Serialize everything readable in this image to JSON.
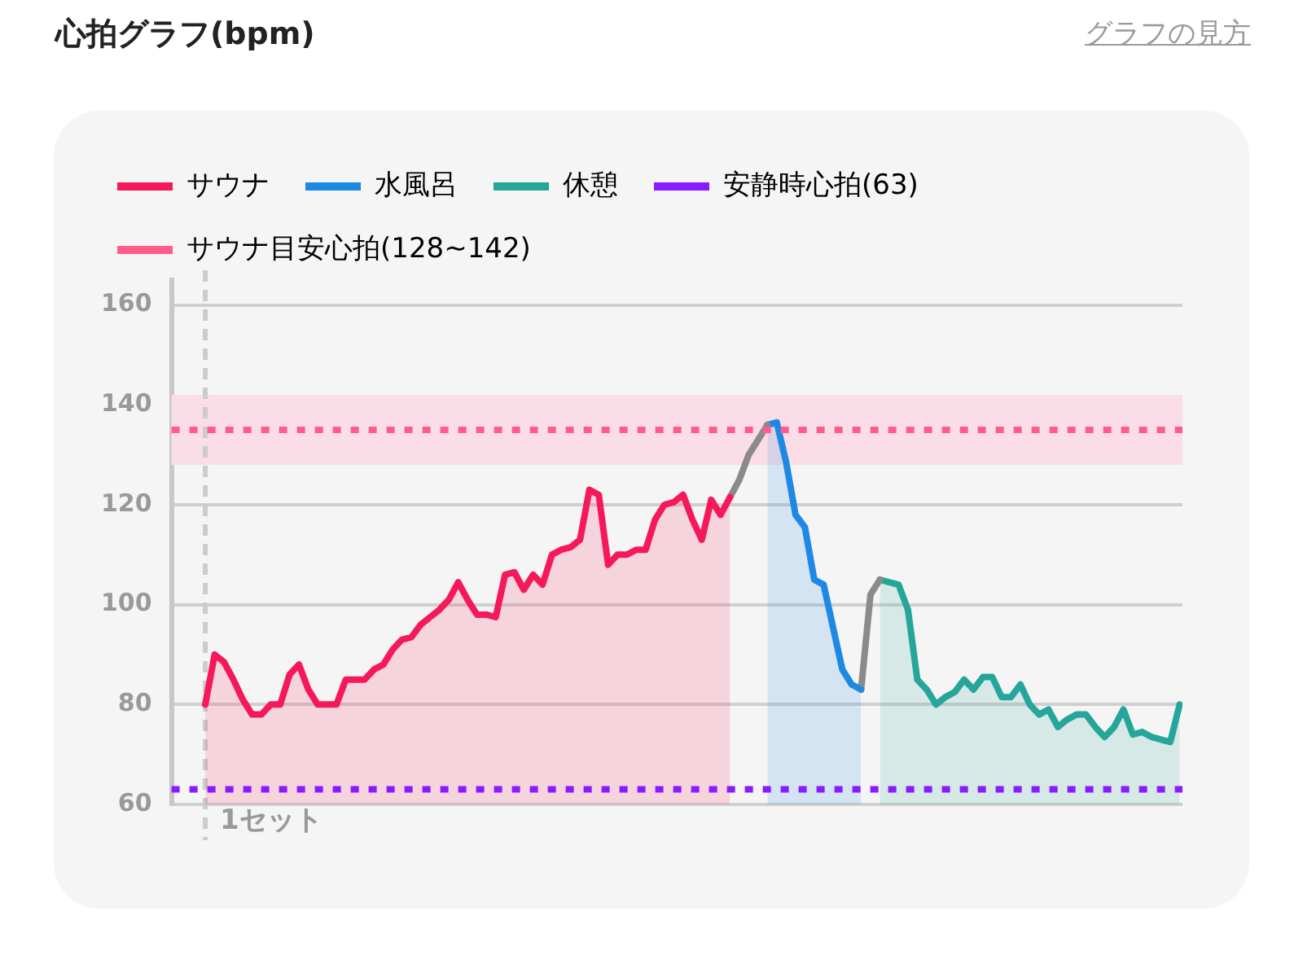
{
  "chart_data": {
    "type": "line",
    "title": "心拍グラフ(bpm)",
    "annotations": [
      "グラフの見方",
      "1セット"
    ],
    "categories": [
      null,
      null,
      null,
      null,
      null,
      null,
      null,
      null,
      null,
      null,
      null,
      null,
      null,
      null,
      null,
      null,
      null,
      null,
      null,
      null,
      null,
      null,
      null,
      null,
      null,
      null,
      null,
      null,
      null,
      null,
      null,
      null,
      null,
      null,
      null,
      null,
      null,
      null,
      null,
      null,
      null,
      null,
      null,
      null,
      null,
      null,
      null,
      null,
      null,
      null,
      null,
      null,
      null,
      null,
      null,
      null,
      null,
      null,
      null,
      null,
      null,
      null,
      null,
      null,
      null,
      null,
      null,
      null,
      null,
      null,
      null,
      null,
      null,
      null,
      null,
      null,
      null,
      null,
      null,
      null,
      null,
      null,
      null,
      null,
      null,
      null,
      null,
      null,
      null,
      null,
      null,
      null,
      null,
      null,
      null,
      null,
      null,
      null,
      null,
      null,
      null,
      null,
      null,
      null,
      null
    ],
    "series": [
      {
        "name": "サウナ",
        "type": "area",
        "color": "#f5195a",
        "values": [
          80,
          90,
          88.5,
          85,
          81,
          78,
          78,
          80,
          80,
          86,
          88,
          83,
          80,
          80,
          80,
          85,
          85,
          85,
          87,
          88,
          91,
          93,
          93.5,
          96,
          97.5,
          99,
          101,
          104.5,
          101,
          98,
          98,
          97.5,
          106,
          106.5,
          103,
          106,
          104,
          110,
          111,
          111.5,
          113,
          123,
          122,
          108,
          110,
          110,
          111,
          111,
          117,
          120,
          120.5,
          122,
          117,
          113,
          121,
          118,
          121.5,
          null,
          null,
          null,
          null,
          null,
          null,
          null,
          null,
          null,
          null,
          null,
          null,
          null,
          null,
          null,
          null,
          null,
          null,
          null,
          null,
          null,
          null,
          null,
          null,
          null,
          null,
          null,
          null,
          null,
          null,
          null,
          null,
          null,
          null,
          null,
          null,
          null,
          null,
          null,
          null,
          null,
          null,
          null,
          null,
          null,
          null,
          null,
          null
        ]
      },
      {
        "type": "line",
        "color": "#8a8a8a",
        "values": [
          null,
          null,
          null,
          null,
          null,
          null,
          null,
          null,
          null,
          null,
          null,
          null,
          null,
          null,
          null,
          null,
          null,
          null,
          null,
          null,
          null,
          null,
          null,
          null,
          null,
          null,
          null,
          null,
          null,
          null,
          null,
          null,
          null,
          null,
          null,
          null,
          null,
          null,
          null,
          null,
          null,
          null,
          null,
          null,
          null,
          null,
          null,
          null,
          null,
          null,
          null,
          null,
          null,
          null,
          null,
          null,
          121.5,
          125,
          130,
          133,
          136,
          null,
          null,
          null,
          null,
          null,
          null,
          null,
          null,
          null,
          null,
          null,
          null,
          null,
          null,
          null,
          null,
          null,
          null,
          null,
          null,
          null,
          null,
          null,
          null,
          null,
          null,
          null,
          null,
          null,
          null,
          null,
          null,
          null,
          null,
          null,
          null,
          null,
          null,
          null,
          null,
          null,
          null,
          null,
          null
        ]
      },
      {
        "name": "水風呂",
        "type": "area",
        "color": "#1e88e5",
        "values": [
          null,
          null,
          null,
          null,
          null,
          null,
          null,
          null,
          null,
          null,
          null,
          null,
          null,
          null,
          null,
          null,
          null,
          null,
          null,
          null,
          null,
          null,
          null,
          null,
          null,
          null,
          null,
          null,
          null,
          null,
          null,
          null,
          null,
          null,
          null,
          null,
          null,
          null,
          null,
          null,
          null,
          null,
          null,
          null,
          null,
          null,
          null,
          null,
          null,
          null,
          null,
          null,
          null,
          null,
          null,
          null,
          null,
          null,
          null,
          null,
          136,
          136.5,
          128.5,
          118,
          115.5,
          105,
          104,
          95.5,
          87,
          84,
          83,
          null,
          null,
          null,
          null,
          null,
          null,
          null,
          null,
          null,
          null,
          null,
          null,
          null,
          null,
          null,
          null,
          null,
          null,
          null,
          null,
          null,
          null,
          null,
          null,
          null,
          null,
          null,
          null,
          null,
          null,
          null,
          null,
          null,
          null
        ]
      },
      {
        "type": "line",
        "color": "#8a8a8a",
        "values": [
          null,
          null,
          null,
          null,
          null,
          null,
          null,
          null,
          null,
          null,
          null,
          null,
          null,
          null,
          null,
          null,
          null,
          null,
          null,
          null,
          null,
          null,
          null,
          null,
          null,
          null,
          null,
          null,
          null,
          null,
          null,
          null,
          null,
          null,
          null,
          null,
          null,
          null,
          null,
          null,
          null,
          null,
          null,
          null,
          null,
          null,
          null,
          null,
          null,
          null,
          null,
          null,
          null,
          null,
          null,
          null,
          null,
          null,
          null,
          null,
          null,
          null,
          null,
          null,
          null,
          null,
          null,
          null,
          null,
          null,
          83,
          102,
          105,
          null,
          null,
          null,
          null,
          null,
          null,
          null,
          null,
          null,
          null,
          null,
          null,
          null,
          null,
          null,
          null,
          null,
          null,
          null,
          null,
          null,
          null,
          null,
          null,
          null,
          null,
          null,
          null,
          null,
          null,
          null,
          null
        ]
      },
      {
        "name": "休憩",
        "type": "area",
        "color": "#26a69a",
        "values": [
          null,
          null,
          null,
          null,
          null,
          null,
          null,
          null,
          null,
          null,
          null,
          null,
          null,
          null,
          null,
          null,
          null,
          null,
          null,
          null,
          null,
          null,
          null,
          null,
          null,
          null,
          null,
          null,
          null,
          null,
          null,
          null,
          null,
          null,
          null,
          null,
          null,
          null,
          null,
          null,
          null,
          null,
          null,
          null,
          null,
          null,
          null,
          null,
          null,
          null,
          null,
          null,
          null,
          null,
          null,
          null,
          null,
          null,
          null,
          null,
          null,
          null,
          null,
          null,
          null,
          null,
          null,
          null,
          null,
          null,
          null,
          null,
          105,
          104.5,
          104,
          99,
          85,
          83,
          80,
          81.5,
          82.5,
          85,
          83,
          85.5,
          85.5,
          81.5,
          81.5,
          84,
          80,
          78,
          79,
          75.5,
          77,
          78,
          78,
          75.5,
          73.5,
          75.5,
          79,
          74,
          74.5,
          73.5,
          73,
          72.5,
          80
        ]
      }
    ],
    "ylim": [
      60,
      165
    ],
    "yticks": [
      60,
      80,
      100,
      120,
      140,
      160
    ],
    "tick_labels": "y",
    "grid": "y",
    "legend": "top left",
    "line_style": "solid",
    "marker": "none",
    "ref_lines": [
      {
        "axis": "y",
        "value": 63,
        "label": "安静時心拍(63)",
        "color": "#8a1aff",
        "line_style": "dotted"
      },
      {
        "axis": "y",
        "value": 135,
        "label": "サウナ目安心拍(128~142)",
        "color": "#ff5c8a",
        "line_style": "dotted"
      }
    ],
    "bands": [
      {
        "axis": "y",
        "from": 128,
        "to": 142,
        "color": "#fadde6"
      }
    ]
  }
}
